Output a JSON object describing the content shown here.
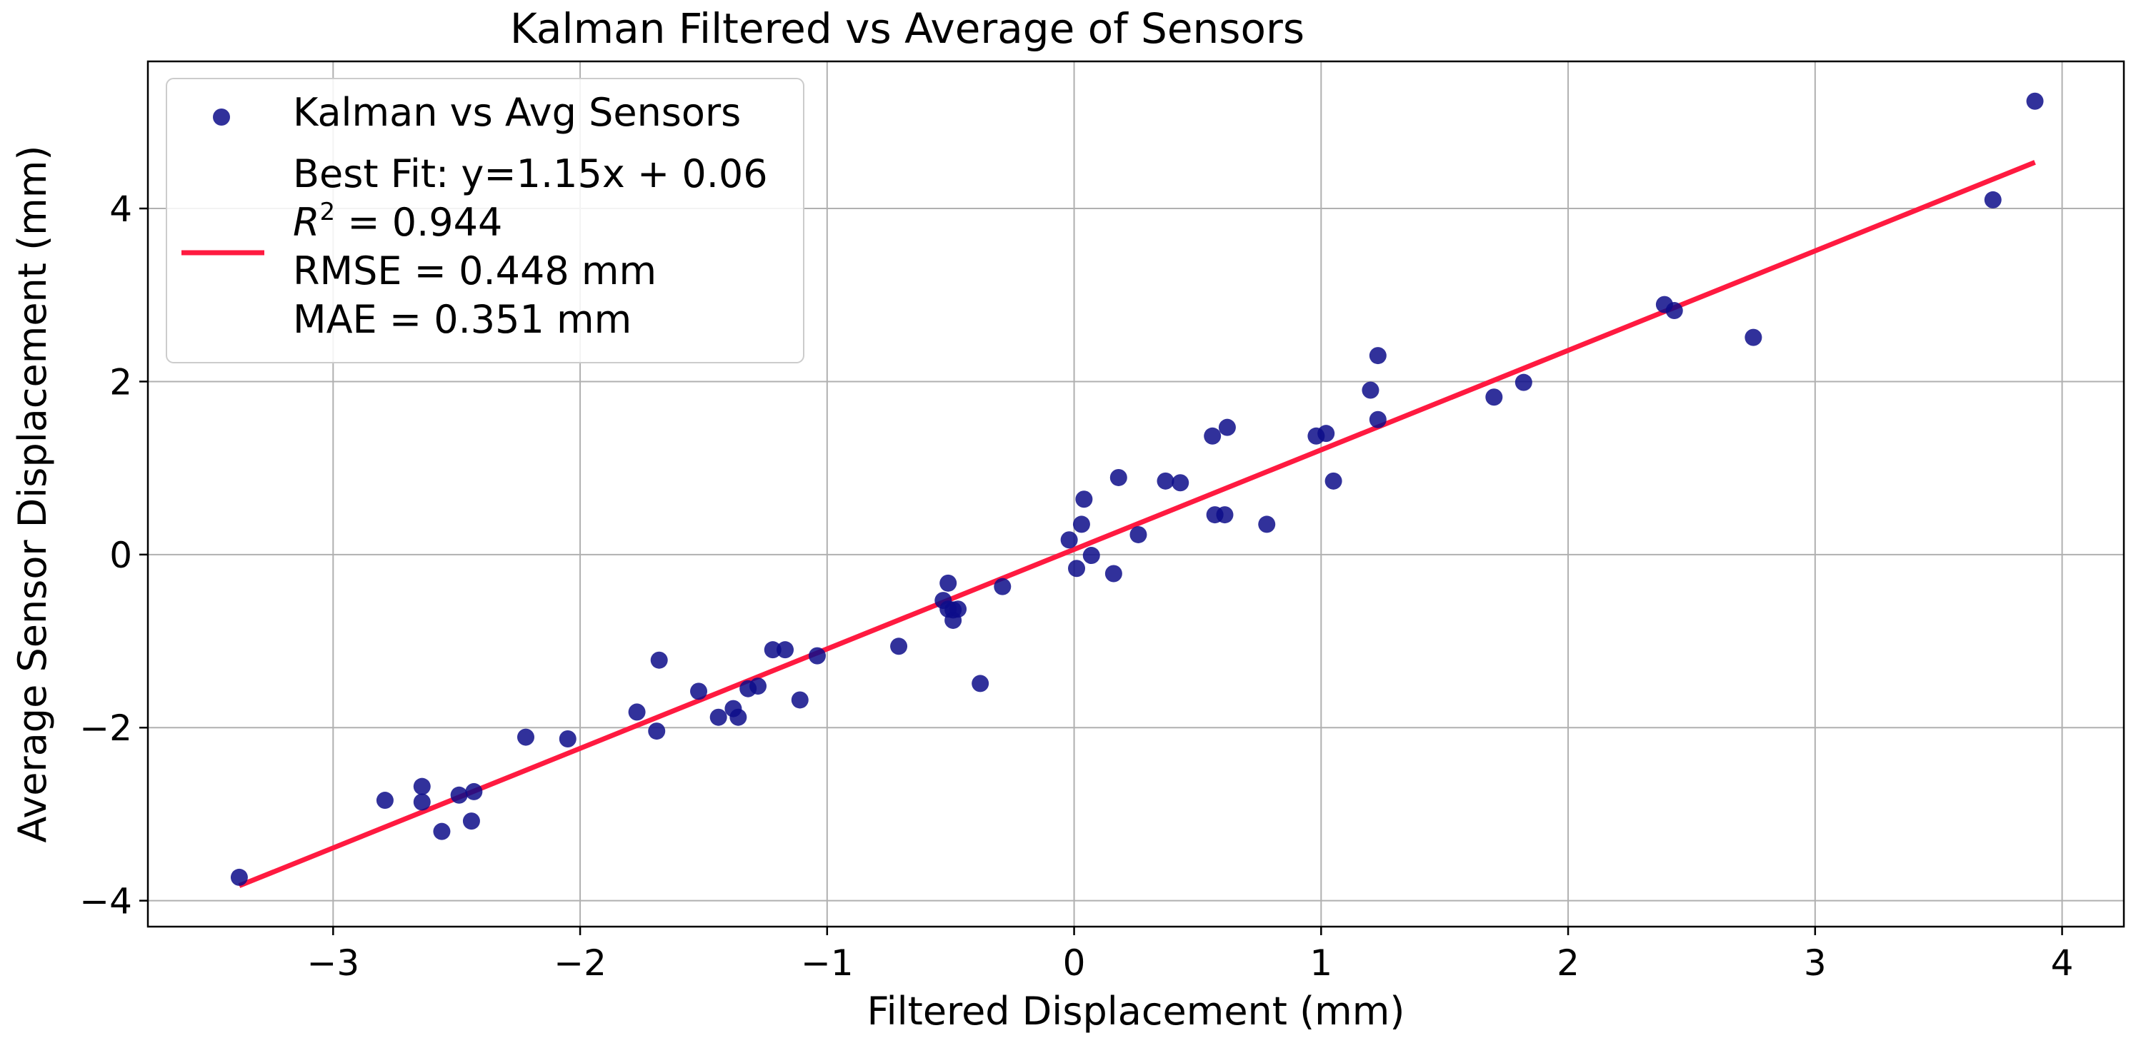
{
  "chart_data": {
    "type": "scatter",
    "title": "Kalman Filtered vs Average of Sensors",
    "xlabel": "Filtered Displacement (mm)",
    "ylabel": "Average Sensor Displacement (mm)",
    "xlim": [
      -3.75,
      4.25
    ],
    "ylim": [
      -4.3,
      5.7
    ],
    "xticks": [
      -3,
      -2,
      -1,
      0,
      1,
      2,
      3,
      4
    ],
    "xtick_labels": [
      "−3",
      "−2",
      "−1",
      "0",
      "1",
      "2",
      "3",
      "4"
    ],
    "yticks": [
      -4,
      -2,
      0,
      2,
      4
    ],
    "ytick_labels": [
      "−4",
      "−2",
      "0",
      "2",
      "4"
    ],
    "grid": true,
    "legend_position": "top-left",
    "colors": {
      "points": "#0d0d8a",
      "fit_line": "#ff1a40",
      "grid": "#b0b0b0"
    },
    "series": [
      {
        "name": "Kalman vs Avg Sensors",
        "type": "scatter",
        "x": [
          -3.38,
          -2.79,
          -2.64,
          -2.64,
          -2.56,
          -2.49,
          -2.44,
          -2.43,
          -2.22,
          -2.05,
          -1.77,
          -1.69,
          -1.68,
          -1.52,
          -1.44,
          -1.38,
          -1.36,
          -1.32,
          -1.28,
          -1.22,
          -1.17,
          -1.11,
          -1.04,
          -0.71,
          -0.53,
          -0.51,
          -0.51,
          -0.49,
          -0.49,
          -0.47,
          -0.38,
          -0.29,
          -0.02,
          0.01,
          0.03,
          0.04,
          0.07,
          0.16,
          0.18,
          0.26,
          0.37,
          0.43,
          0.56,
          0.57,
          0.61,
          0.62,
          0.78,
          0.98,
          1.02,
          1.05,
          1.2,
          1.23,
          1.23,
          1.7,
          1.82,
          2.39,
          2.43,
          2.75,
          3.72,
          3.89
        ],
        "y": [
          -3.73,
          -2.84,
          -2.68,
          -2.86,
          -3.2,
          -2.78,
          -3.08,
          -2.74,
          -2.11,
          -2.13,
          -1.82,
          -2.04,
          -1.22,
          -1.58,
          -1.88,
          -1.78,
          -1.88,
          -1.55,
          -1.52,
          -1.1,
          -1.1,
          -1.68,
          -1.17,
          -1.06,
          -0.53,
          -0.33,
          -0.63,
          -0.64,
          -0.76,
          -0.63,
          -1.49,
          -0.37,
          0.17,
          -0.16,
          0.35,
          0.64,
          -0.01,
          -0.22,
          0.89,
          0.23,
          0.85,
          0.83,
          1.37,
          0.46,
          0.46,
          1.47,
          0.35,
          1.37,
          1.4,
          0.85,
          1.9,
          2.3,
          1.56,
          1.82,
          1.99,
          2.89,
          2.82,
          2.51,
          4.1,
          5.24
        ]
      },
      {
        "name": "Best Fit: y=1.15x + 0.06",
        "type": "line",
        "slope": 1.15,
        "intercept": 0.06,
        "x_range": [
          -3.38,
          3.89
        ]
      }
    ],
    "legend": {
      "scatter_label": "Kalman vs Avg Sensors",
      "fit_label": "Best Fit: y=1.15x + 0.06",
      "r2_prefix": "R",
      "r2_exponent": "2",
      "r2_value": " = 0.944",
      "rmse": "RMSE = 0.448 mm",
      "mae": "MAE = 0.351 mm"
    }
  }
}
